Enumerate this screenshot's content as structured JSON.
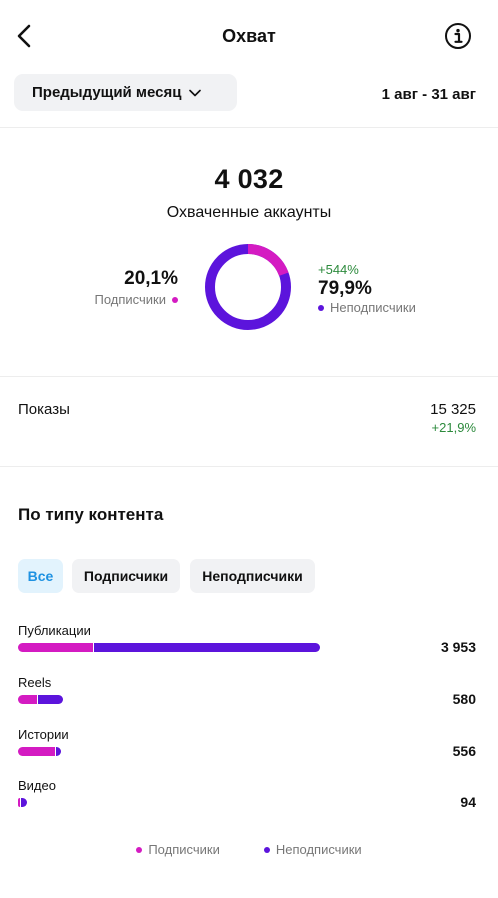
{
  "header": {
    "title": "Охват"
  },
  "period": {
    "label": "Предыдущий месяц",
    "date_range": "1 авг - 31 авг"
  },
  "summary": {
    "total": "4 032",
    "total_label": "Охваченные аккаунты",
    "followers_pct": "20,1%",
    "followers_label": "Подписчики",
    "followers_fraction": 0.201,
    "non_followers_change": "+544%",
    "non_followers_pct": "79,9%",
    "non_followers_label": "Неподписчики"
  },
  "impressions": {
    "label": "Показы",
    "value": "15 325",
    "change": "+21,9%"
  },
  "content_type": {
    "title": "По типу контента",
    "filters": [
      "Все",
      "Подписчики",
      "Неподписчики"
    ],
    "active_filter": "Все",
    "rows": [
      {
        "label": "Публикации",
        "value": "3 953",
        "total": 3953,
        "followers": 990
      },
      {
        "label": "Reels",
        "value": "580",
        "total": 580,
        "followers": 248
      },
      {
        "label": "Истории",
        "value": "556",
        "total": 556,
        "followers": 490
      },
      {
        "label": "Видео",
        "value": "94",
        "total": 94,
        "followers": 10
      }
    ]
  },
  "legend": {
    "followers": "Подписчики",
    "non_followers": "Неподписчики"
  },
  "colors": {
    "followers": "#d41bc2",
    "non_followers": "#5c14dc",
    "positive": "#2c8a3c",
    "active_filter": "#1e92e2"
  }
}
